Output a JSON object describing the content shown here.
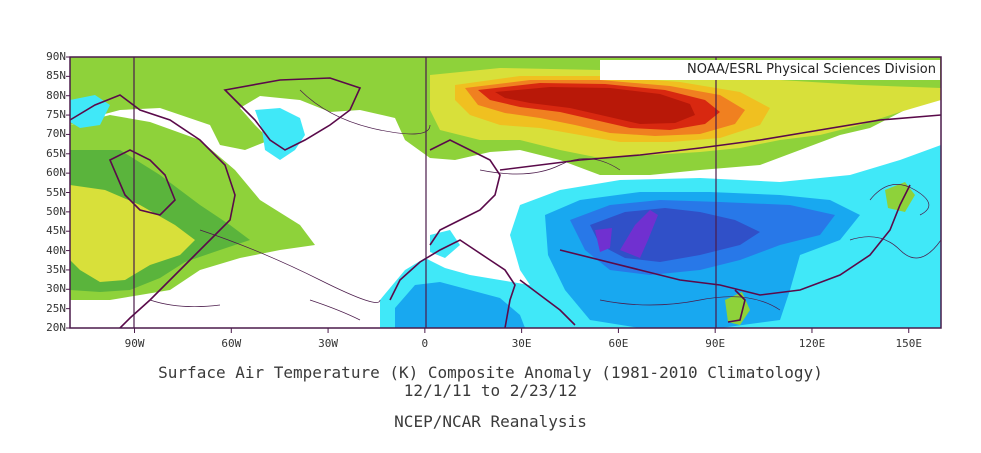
{
  "credit": "NOAA/ESRL Physical Sciences Division",
  "title_line1": "Surface Air Temperature (K) Composite Anomaly (1981-2010 Climatology)",
  "title_line2": "12/1/11   to 2/23/12",
  "source": "NCEP/NCAR Reanalysis",
  "lat_labels": [
    "90N",
    "85N",
    "80N",
    "75N",
    "70N",
    "65N",
    "60N",
    "55N",
    "50N",
    "45N",
    "40N",
    "35N",
    "30N",
    "25N",
    "20N"
  ],
  "lon_labels": [
    "90W",
    "60W",
    "30W",
    "0",
    "30E",
    "60E",
    "90E",
    "120E",
    "150E"
  ],
  "colors": {
    "frame": "#4a1a4a",
    "coast": "#5a0a4a",
    "warm_1": "#8ed23a",
    "warm_2": "#5ab43c",
    "warm_3": "#d8e03a",
    "warm_4": "#f0c020",
    "warm_5": "#f08020",
    "warm_6": "#d82810",
    "warm_7": "#b81808",
    "cold_1": "#40e8f8",
    "cold_2": "#18a8f0",
    "cold_3": "#2878e8",
    "cold_4": "#3050c8",
    "cold_5": "#7030d0"
  }
}
